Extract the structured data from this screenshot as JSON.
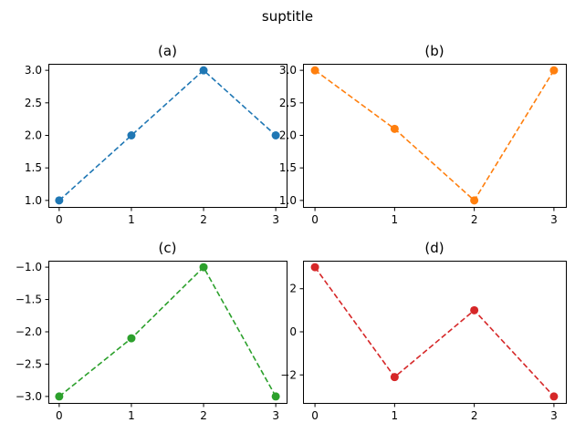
{
  "suptitle": "suptitle",
  "chart_data": [
    {
      "type": "line",
      "title": "(a)",
      "color": "#1f77b4",
      "x": [
        0,
        1,
        2,
        3
      ],
      "y": [
        1.0,
        2.0,
        3.0,
        2.0
      ],
      "xlim": [
        -0.15,
        3.15
      ],
      "ylim": [
        0.9,
        3.1
      ],
      "xticks": [
        0,
        1,
        2,
        3
      ],
      "xtick_labels": [
        "0",
        "1",
        "2",
        "3"
      ],
      "yticks": [
        1.0,
        1.5,
        2.0,
        2.5,
        3.0
      ],
      "ytick_labels": [
        "1.0",
        "1.5",
        "2.0",
        "2.5",
        "3.0"
      ],
      "linestyle": "dashed",
      "marker": "circle",
      "grid": false
    },
    {
      "type": "line",
      "title": "(b)",
      "color": "#ff7f0e",
      "x": [
        0,
        1,
        2,
        3
      ],
      "y": [
        3.0,
        2.1,
        1.0,
        3.0
      ],
      "xlim": [
        -0.15,
        3.15
      ],
      "ylim": [
        0.9,
        3.1
      ],
      "xticks": [
        0,
        1,
        2,
        3
      ],
      "xtick_labels": [
        "0",
        "1",
        "2",
        "3"
      ],
      "yticks": [
        1.0,
        1.5,
        2.0,
        2.5,
        3.0
      ],
      "ytick_labels": [
        "1.0",
        "1.5",
        "2.0",
        "2.5",
        "3.0"
      ],
      "linestyle": "dashed",
      "marker": "circle",
      "grid": false
    },
    {
      "type": "line",
      "title": "(c)",
      "color": "#2ca02c",
      "x": [
        0,
        1,
        2,
        3
      ],
      "y": [
        -3.0,
        -2.1,
        -1.0,
        -3.0
      ],
      "xlim": [
        -0.15,
        3.15
      ],
      "ylim": [
        -3.1,
        -0.9
      ],
      "xticks": [
        0,
        1,
        2,
        3
      ],
      "xtick_labels": [
        "0",
        "1",
        "2",
        "3"
      ],
      "yticks": [
        -3.0,
        -2.5,
        -2.0,
        -1.5,
        -1.0
      ],
      "ytick_labels": [
        "−3.0",
        "−2.5",
        "−2.0",
        "−1.5",
        "−1.0"
      ],
      "linestyle": "dashed",
      "marker": "circle",
      "grid": false
    },
    {
      "type": "line",
      "title": "(d)",
      "color": "#d62728",
      "x": [
        0,
        1,
        2,
        3
      ],
      "y": [
        3.0,
        -2.1,
        1.0,
        -3.0
      ],
      "xlim": [
        -0.15,
        3.15
      ],
      "ylim": [
        -3.3,
        3.3
      ],
      "xticks": [
        0,
        1,
        2,
        3
      ],
      "xtick_labels": [
        "0",
        "1",
        "2",
        "3"
      ],
      "yticks": [
        -2,
        0,
        2
      ],
      "ytick_labels": [
        "−2",
        "0",
        "2"
      ],
      "linestyle": "dashed",
      "marker": "circle",
      "grid": false
    }
  ]
}
